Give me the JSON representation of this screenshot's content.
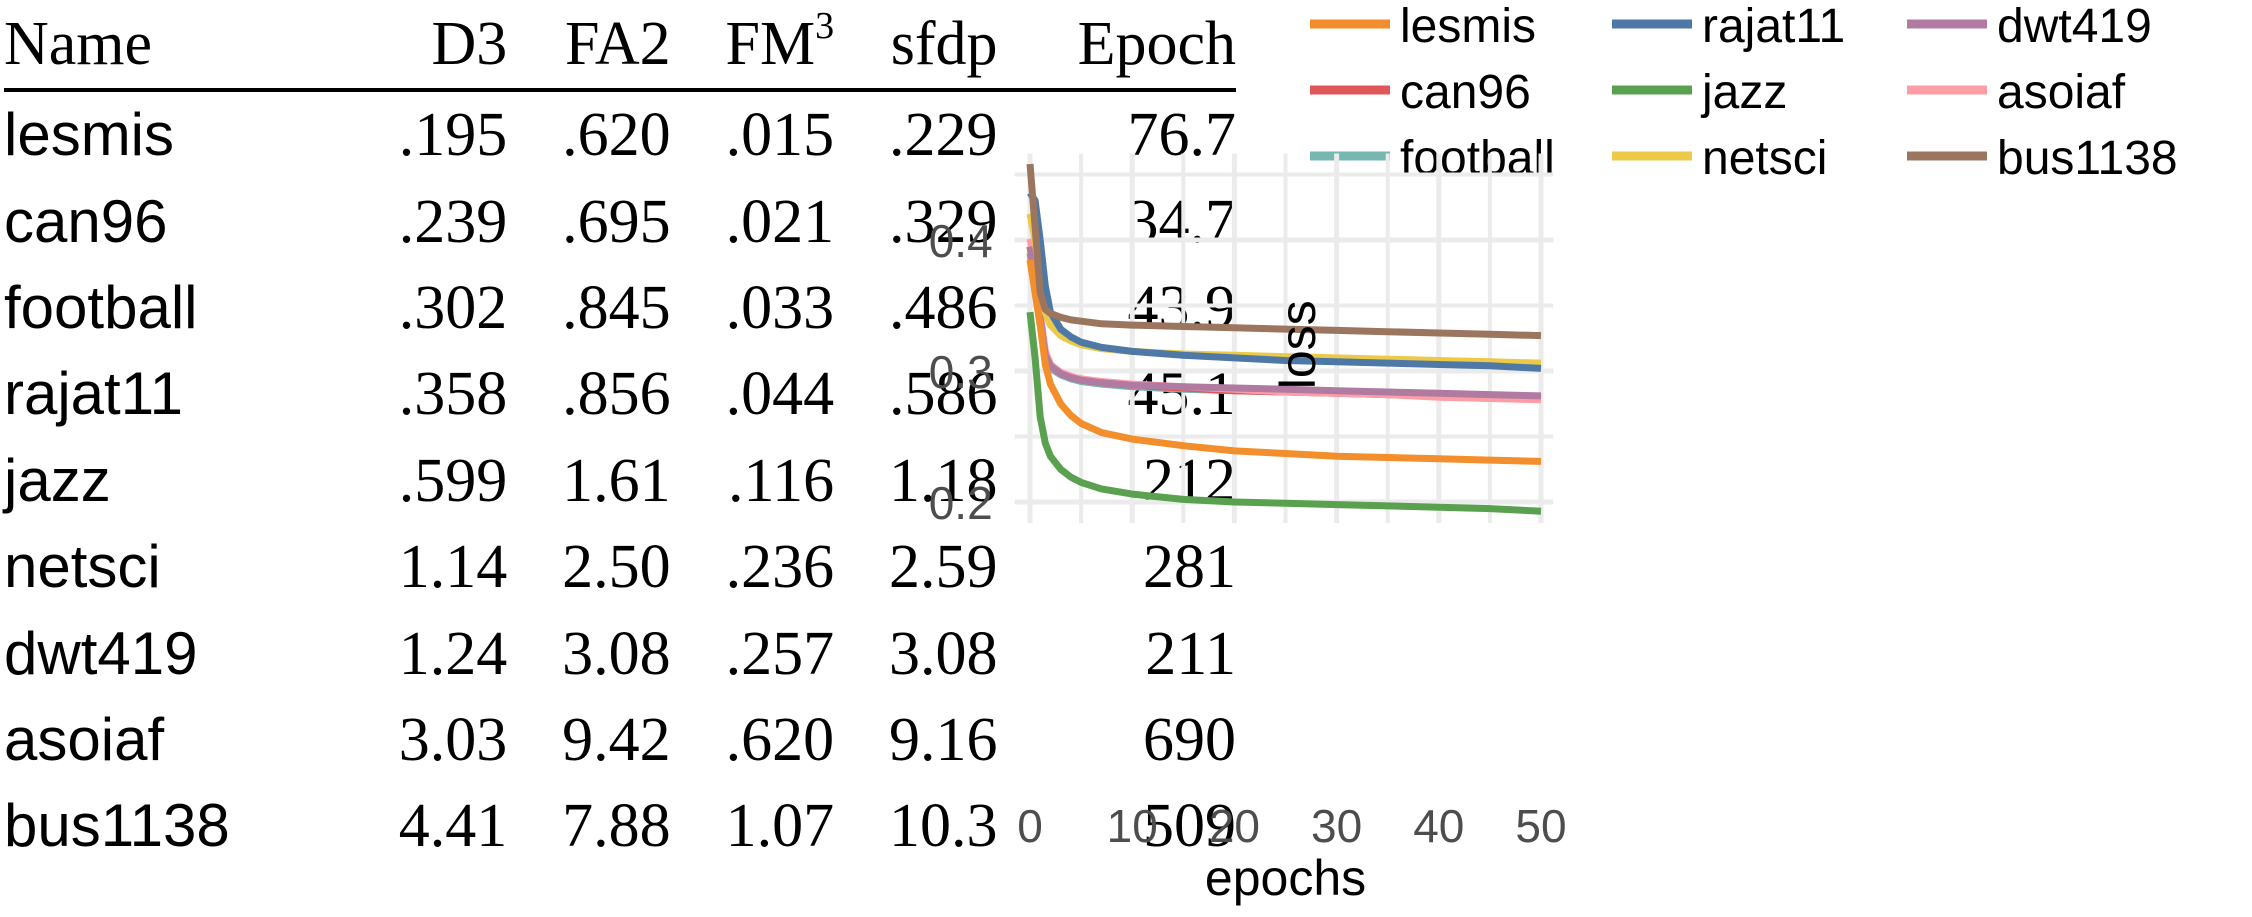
{
  "table": {
    "columns": [
      {
        "key": "name",
        "label": "Name"
      },
      {
        "key": "d3",
        "label": "D3"
      },
      {
        "key": "fa2",
        "label": "FA2"
      },
      {
        "key": "fm3",
        "label": "FM",
        "sup": "3"
      },
      {
        "key": "sfdp",
        "label": "sfdp"
      },
      {
        "key": "epoch",
        "label": "Epoch"
      }
    ],
    "rows": [
      {
        "name": "lesmis",
        "d3": ".195",
        "fa2": ".620",
        "fm3": ".015",
        "sfdp": ".229",
        "epoch": "76.7"
      },
      {
        "name": "can96",
        "d3": ".239",
        "fa2": ".695",
        "fm3": ".021",
        "sfdp": ".329",
        "epoch": "34.7"
      },
      {
        "name": "football",
        "d3": ".302",
        "fa2": ".845",
        "fm3": ".033",
        "sfdp": ".486",
        "epoch": "43.9"
      },
      {
        "name": "rajat11",
        "d3": ".358",
        "fa2": ".856",
        "fm3": ".044",
        "sfdp": ".586",
        "epoch": "45.1"
      },
      {
        "name": "jazz",
        "d3": ".599",
        "fa2": "1.61",
        "fm3": ".116",
        "sfdp": "1.18",
        "epoch": "212"
      },
      {
        "name": "netsci",
        "d3": "1.14",
        "fa2": "2.50",
        "fm3": ".236",
        "sfdp": "2.59",
        "epoch": "281"
      },
      {
        "name": "dwt419",
        "d3": "1.24",
        "fa2": "3.08",
        "fm3": ".257",
        "sfdp": "3.08",
        "epoch": "211"
      },
      {
        "name": "asoiaf",
        "d3": "3.03",
        "fa2": "9.42",
        "fm3": ".620",
        "sfdp": "9.16",
        "epoch": "690"
      },
      {
        "name": "bus1138",
        "d3": "4.41",
        "fa2": "7.88",
        "fm3": "1.07",
        "sfdp": "10.3",
        "epoch": "509"
      }
    ]
  },
  "chart_data": {
    "type": "line",
    "title": "",
    "xlabel": "epochs",
    "ylabel": "loss",
    "xlim": [
      -1.5,
      51
    ],
    "ylim": [
      0.183,
      0.47
    ],
    "xticks": [
      0,
      10,
      20,
      30,
      40,
      50
    ],
    "yticks": [
      0.2,
      0.3,
      0.4
    ],
    "grid": true,
    "legend_position": "top",
    "legend_columns": 3,
    "x": [
      0,
      0.5,
      1,
      1.5,
      2,
      3,
      4,
      5,
      7,
      10,
      15,
      20,
      25,
      30,
      35,
      40,
      45,
      50
    ],
    "series": [
      {
        "name": "lesmis",
        "color": "#f28e2b",
        "values": [
          0.385,
          0.36,
          0.335,
          0.305,
          0.29,
          0.275,
          0.266,
          0.26,
          0.253,
          0.248,
          0.243,
          0.239,
          0.237,
          0.235,
          0.234,
          0.233,
          0.232,
          0.231
        ]
      },
      {
        "name": "can96",
        "color": "#e15759",
        "values": [
          0.395,
          0.37,
          0.34,
          0.315,
          0.305,
          0.298,
          0.295,
          0.293,
          0.291,
          0.289,
          0.287,
          0.285,
          0.284,
          0.283,
          0.282,
          0.281,
          0.28,
          0.279
        ]
      },
      {
        "name": "football",
        "color": "#76b7b2",
        "values": [
          0.39,
          0.36,
          0.335,
          0.31,
          0.302,
          0.297,
          0.294,
          0.292,
          0.29,
          0.288,
          0.286,
          0.285,
          0.284,
          0.283,
          0.282,
          0.281,
          0.281,
          0.28
        ]
      },
      {
        "name": "rajat11",
        "color": "#4e79a7",
        "values": [
          0.436,
          0.43,
          0.4,
          0.365,
          0.345,
          0.332,
          0.326,
          0.322,
          0.318,
          0.315,
          0.312,
          0.31,
          0.308,
          0.307,
          0.306,
          0.305,
          0.304,
          0.302
        ]
      },
      {
        "name": "jazz",
        "color": "#59a14f",
        "values": [
          0.345,
          0.31,
          0.265,
          0.245,
          0.235,
          0.225,
          0.219,
          0.215,
          0.21,
          0.206,
          0.202,
          0.2,
          0.199,
          0.198,
          0.197,
          0.196,
          0.195,
          0.193
        ]
      },
      {
        "name": "netsci",
        "color": "#edc948",
        "values": [
          0.42,
          0.4,
          0.37,
          0.345,
          0.335,
          0.327,
          0.323,
          0.32,
          0.317,
          0.315,
          0.313,
          0.312,
          0.311,
          0.31,
          0.309,
          0.308,
          0.307,
          0.306
        ]
      },
      {
        "name": "dwt419",
        "color": "#b07aa1",
        "values": [
          0.395,
          0.37,
          0.34,
          0.312,
          0.304,
          0.298,
          0.295,
          0.293,
          0.291,
          0.289,
          0.288,
          0.287,
          0.286,
          0.285,
          0.284,
          0.283,
          0.282,
          0.281
        ]
      },
      {
        "name": "asoiaf",
        "color": "#ff9da7",
        "values": [
          0.401,
          0.38,
          0.345,
          0.315,
          0.305,
          0.299,
          0.296,
          0.294,
          0.292,
          0.29,
          0.288,
          0.286,
          0.284,
          0.283,
          0.282,
          0.28,
          0.279,
          0.278
        ]
      },
      {
        "name": "bus1138",
        "color": "#9c755f",
        "values": [
          0.458,
          0.41,
          0.36,
          0.347,
          0.344,
          0.341,
          0.339,
          0.338,
          0.336,
          0.335,
          0.334,
          0.333,
          0.332,
          0.331,
          0.33,
          0.329,
          0.328,
          0.327
        ]
      }
    ],
    "draw_order": [
      "football",
      "can96",
      "asoiaf",
      "dwt419",
      "lesmis",
      "jazz",
      "netsci",
      "rajat11",
      "bus1138"
    ]
  }
}
